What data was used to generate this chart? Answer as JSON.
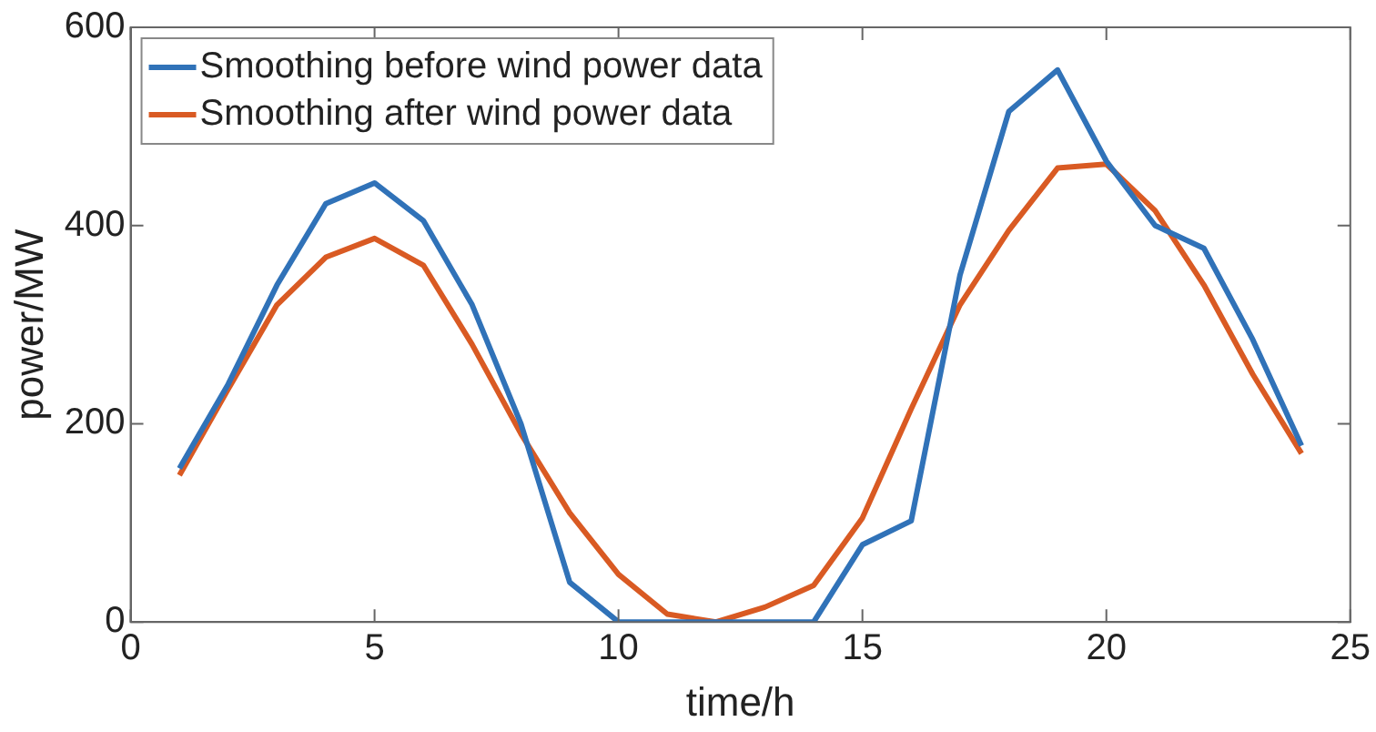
{
  "chart_data": {
    "type": "line",
    "xlabel": "time/h",
    "ylabel": "power/MW",
    "x": [
      1,
      2,
      3,
      4,
      5,
      6,
      7,
      8,
      9,
      10,
      11,
      12,
      13,
      14,
      15,
      16,
      17,
      18,
      19,
      20,
      21,
      22,
      23,
      24
    ],
    "series": [
      {
        "name": "Smoothing before wind power data",
        "color": "#3072b8",
        "values": [
          155,
          240,
          340,
          422,
          443,
          405,
          320,
          200,
          40,
          0,
          0,
          0,
          0,
          0,
          78,
          102,
          350,
          515,
          557,
          465,
          400,
          377,
          285,
          178
        ]
      },
      {
        "name": "Smoothing after wind power data",
        "color": "#d95a23",
        "values": [
          148,
          235,
          320,
          368,
          387,
          360,
          280,
          190,
          110,
          48,
          8,
          0,
          15,
          37,
          105,
          215,
          320,
          395,
          458,
          462,
          415,
          340,
          250,
          170
        ]
      }
    ],
    "xlim": [
      0,
      25
    ],
    "xticks": [
      0,
      5,
      10,
      15,
      20,
      25
    ],
    "ylim": [
      0,
      600
    ],
    "yticks": [
      0,
      200,
      400,
      600
    ],
    "grid": false,
    "legend": "top left",
    "marker": "none",
    "line_style": "solid"
  }
}
